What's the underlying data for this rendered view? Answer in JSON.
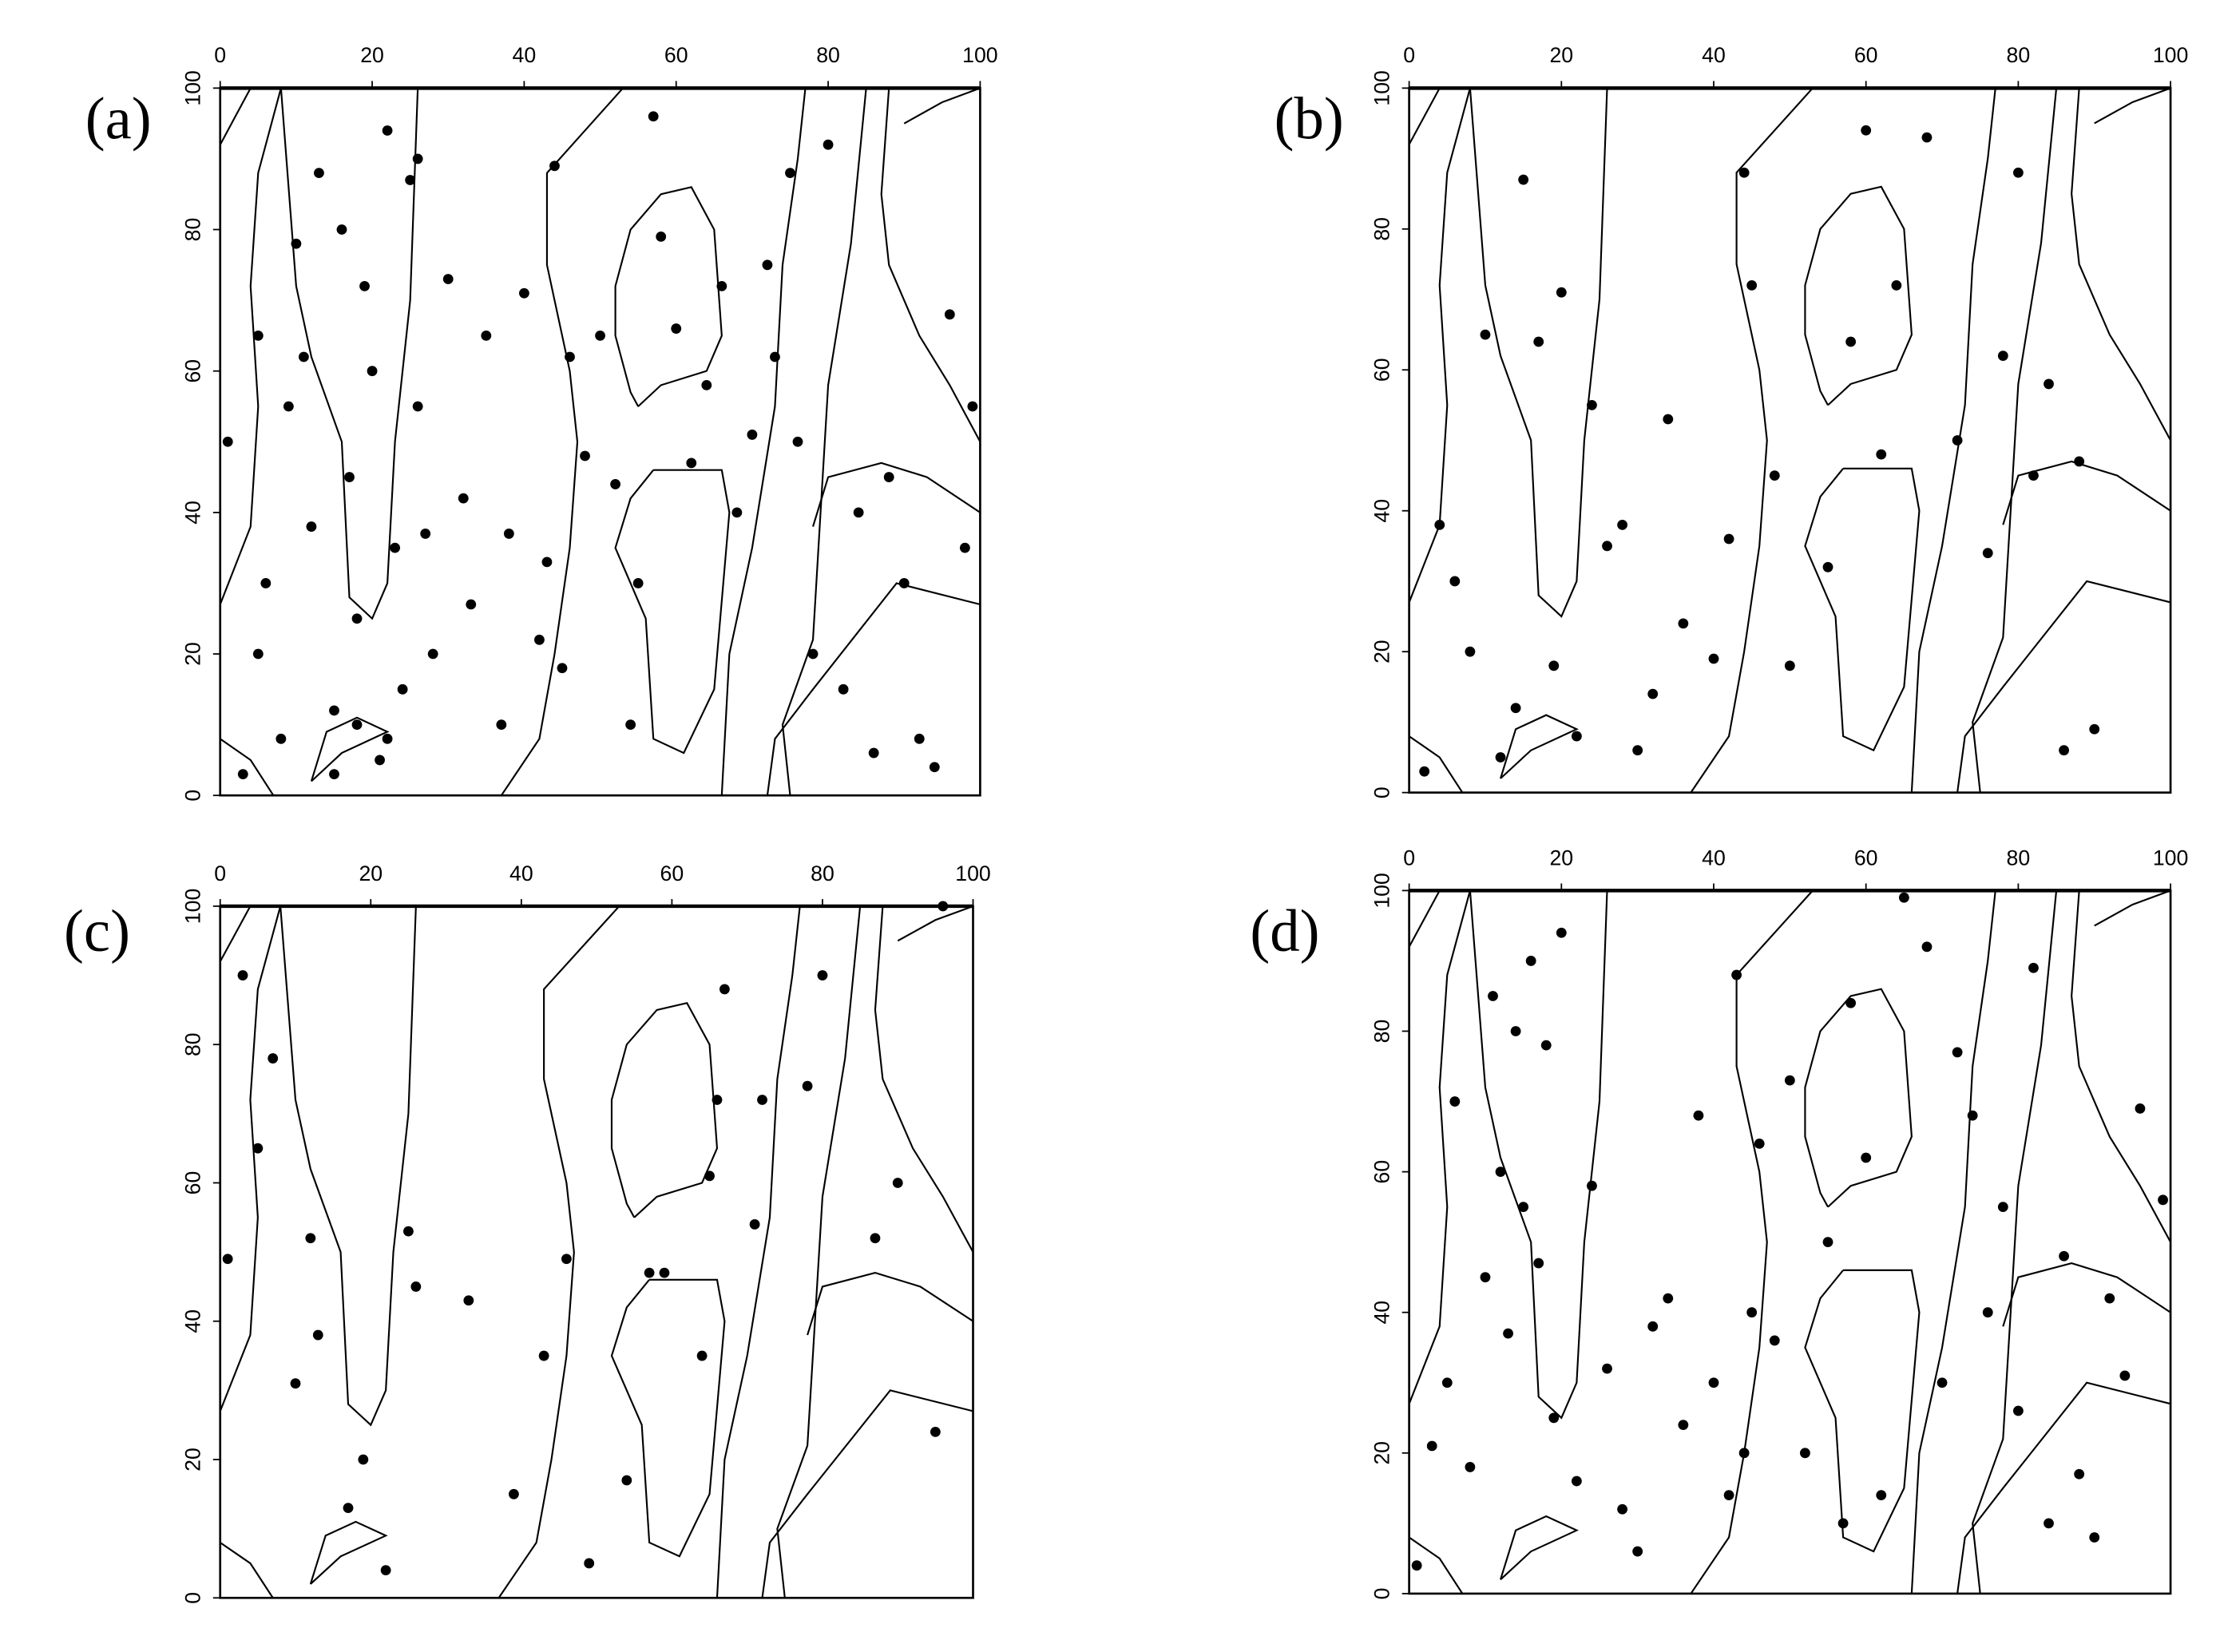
{
  "chart_data": [
    {
      "type": "scatter",
      "title": "(a)",
      "color": "#000000",
      "grid": false,
      "xlim": [
        0,
        100
      ],
      "ylim": [
        0,
        100
      ],
      "xticks": [
        0,
        20,
        40,
        60,
        80,
        100
      ],
      "yticks": [
        0,
        20,
        40,
        60,
        80,
        100
      ],
      "x": [
        1,
        3,
        5,
        5,
        6,
        8,
        9,
        10,
        11,
        12,
        13,
        15,
        16,
        17,
        18,
        19,
        20,
        21,
        22,
        23,
        24,
        25,
        26,
        27,
        28,
        30,
        32,
        33,
        35,
        37,
        38,
        40,
        42,
        43,
        44,
        45,
        46,
        48,
        50,
        52,
        54,
        55,
        57,
        58,
        60,
        62,
        64,
        66,
        68,
        70,
        72,
        73,
        75,
        76,
        78,
        80,
        82,
        84,
        86,
        88,
        90,
        92,
        94,
        96,
        98,
        99,
        15,
        18,
        22,
        26
      ],
      "y": [
        50,
        3,
        20,
        65,
        30,
        8,
        55,
        78,
        62,
        38,
        88,
        12,
        80,
        45,
        10,
        72,
        60,
        5,
        94,
        35,
        15,
        87,
        55,
        37,
        20,
        73,
        42,
        27,
        65,
        10,
        37,
        71,
        22,
        33,
        89,
        18,
        62,
        48,
        65,
        44,
        10,
        30,
        96,
        79,
        66,
        47,
        58,
        72,
        40,
        51,
        75,
        62,
        88,
        50,
        20,
        92,
        15,
        40,
        6,
        45,
        30,
        8,
        4,
        68,
        35,
        55,
        3,
        25,
        8,
        90
      ]
    },
    {
      "type": "scatter",
      "title": "(b)",
      "color": "#000000",
      "grid": false,
      "xlim": [
        0,
        100
      ],
      "ylim": [
        0,
        100
      ],
      "xticks": [
        0,
        20,
        40,
        60,
        80,
        100
      ],
      "yticks": [
        0,
        20,
        40,
        60,
        80,
        100
      ],
      "x": [
        2,
        4,
        6,
        8,
        10,
        12,
        14,
        15,
        17,
        19,
        20,
        22,
        24,
        26,
        28,
        30,
        32,
        34,
        36,
        40,
        42,
        44,
        45,
        48,
        50,
        55,
        58,
        60,
        62,
        64,
        68,
        72,
        76,
        78,
        80,
        82,
        84,
        86,
        88,
        90
      ],
      "y": [
        3,
        38,
        30,
        20,
        65,
        5,
        12,
        87,
        64,
        18,
        71,
        8,
        55,
        35,
        38,
        6,
        14,
        53,
        24,
        19,
        36,
        88,
        72,
        45,
        18,
        32,
        64,
        94,
        48,
        72,
        93,
        50,
        34,
        62,
        88,
        45,
        58,
        6,
        47,
        9
      ]
    },
    {
      "type": "scatter",
      "title": "(c)",
      "color": "#000000",
      "grid": false,
      "xlim": [
        0,
        100
      ],
      "ylim": [
        0,
        100
      ],
      "xticks": [
        0,
        20,
        40,
        60,
        80,
        100
      ],
      "yticks": [
        0,
        20,
        40,
        60,
        80,
        100
      ],
      "x": [
        1,
        3,
        5,
        7,
        10,
        12,
        13,
        17,
        19,
        22,
        25,
        26,
        33,
        39,
        43,
        46,
        49,
        54,
        57,
        59,
        64,
        65,
        66,
        67,
        71,
        72,
        78,
        80,
        87,
        90,
        95,
        96
      ],
      "y": [
        49,
        90,
        65,
        78,
        31,
        52,
        38,
        13,
        20,
        4,
        53,
        45,
        43,
        15,
        35,
        49,
        5,
        17,
        47,
        47,
        35,
        61,
        72,
        88,
        54,
        72,
        74,
        90,
        52,
        60,
        24,
        100
      ]
    },
    {
      "type": "scatter",
      "title": "(d)",
      "color": "#000000",
      "grid": false,
      "xlim": [
        0,
        100
      ],
      "ylim": [
        0,
        100
      ],
      "xticks": [
        0,
        20,
        40,
        60,
        80,
        100
      ],
      "yticks": [
        0,
        20,
        40,
        60,
        80,
        100
      ],
      "x": [
        1,
        3,
        5,
        6,
        8,
        10,
        11,
        12,
        13,
        14,
        15,
        16,
        17,
        18,
        19,
        20,
        22,
        24,
        26,
        28,
        30,
        32,
        34,
        36,
        38,
        40,
        42,
        43,
        44,
        45,
        46,
        48,
        50,
        52,
        55,
        57,
        58,
        60,
        62,
        65,
        68,
        70,
        72,
        74,
        76,
        78,
        80,
        82,
        84,
        86,
        88,
        90,
        92,
        94,
        96,
        99
      ],
      "y": [
        4,
        21,
        30,
        70,
        18,
        45,
        85,
        60,
        37,
        80,
        55,
        90,
        47,
        78,
        25,
        94,
        16,
        58,
        32,
        12,
        6,
        38,
        42,
        24,
        68,
        30,
        14,
        88,
        20,
        40,
        64,
        36,
        73,
        20,
        50,
        10,
        84,
        62,
        14,
        99,
        92,
        30,
        77,
        68,
        40,
        55,
        26,
        89,
        10,
        48,
        17,
        8,
        42,
        31,
        69,
        56
      ]
    }
  ]
}
